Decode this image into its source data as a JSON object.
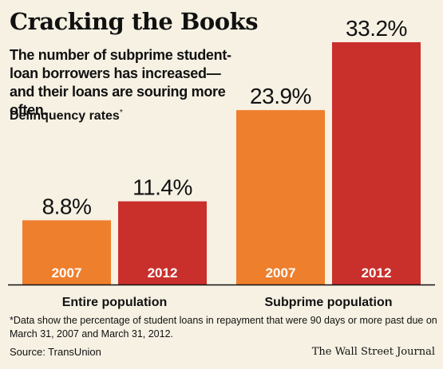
{
  "chart_data": {
    "type": "bar",
    "title": "Cracking the Books",
    "subtitle": "The number of subprime student-loan borrowers has increased—and their loans are souring more often.",
    "ylabel": "Delinquency rates",
    "ylabel_marker": "*",
    "groups": [
      {
        "name": "Entire population",
        "bars": [
          {
            "year": "2007",
            "value": 8.8,
            "label": "8.8%",
            "color": "#ee7f2d"
          },
          {
            "year": "2012",
            "value": 11.4,
            "label": "11.4%",
            "color": "#c9302c"
          }
        ]
      },
      {
        "name": "Subprime population",
        "bars": [
          {
            "year": "2007",
            "value": 23.9,
            "label": "23.9%",
            "color": "#ee7f2d"
          },
          {
            "year": "2012",
            "value": 33.2,
            "label": "33.2%",
            "color": "#c9302c"
          }
        ]
      }
    ],
    "ylim": [
      0,
      33.2
    ],
    "grid": false,
    "legend": "none"
  },
  "footnote": "*Data show the percentage of student loans in repayment that were 90 days or more past due on March 31, 2007 and March 31, 2012.",
  "source": "Source: TransUnion",
  "credit": "The Wall Street Journal"
}
